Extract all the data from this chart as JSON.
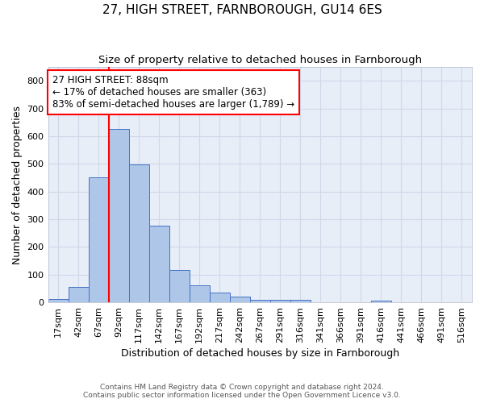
{
  "title": "27, HIGH STREET, FARNBOROUGH, GU14 6ES",
  "subtitle": "Size of property relative to detached houses in Farnborough",
  "xlabel": "Distribution of detached houses by size in Farnborough",
  "ylabel": "Number of detached properties",
  "footer1": "Contains HM Land Registry data © Crown copyright and database right 2024.",
  "footer2": "Contains public sector information licensed under the Open Government Licence v3.0.",
  "bin_labels": [
    "17sqm",
    "42sqm",
    "67sqm",
    "92sqm",
    "117sqm",
    "142sqm",
    "167sqm",
    "192sqm",
    "217sqm",
    "242sqm",
    "267sqm",
    "291sqm",
    "316sqm",
    "341sqm",
    "366sqm",
    "391sqm",
    "416sqm",
    "441sqm",
    "466sqm",
    "491sqm",
    "516sqm"
  ],
  "bar_values": [
    12,
    55,
    450,
    625,
    498,
    278,
    118,
    62,
    35,
    20,
    10,
    10,
    8,
    0,
    0,
    0,
    7,
    0,
    0,
    0,
    0
  ],
  "bar_color": "#aec6e8",
  "bar_edge_color": "#4472c4",
  "grid_color": "#d0d8e8",
  "background_color": "#e8eef8",
  "vline_color": "red",
  "annotation_text": "27 HIGH STREET: 88sqm\n← 17% of detached houses are smaller (363)\n83% of semi-detached houses are larger (1,789) →",
  "annotation_box_color": "white",
  "annotation_box_edge": "red",
  "ylim": [
    0,
    850
  ],
  "yticks": [
    0,
    100,
    200,
    300,
    400,
    500,
    600,
    700,
    800
  ],
  "title_fontsize": 11,
  "subtitle_fontsize": 9.5,
  "axis_label_fontsize": 9,
  "tick_fontsize": 8,
  "annotation_fontsize": 8.5
}
